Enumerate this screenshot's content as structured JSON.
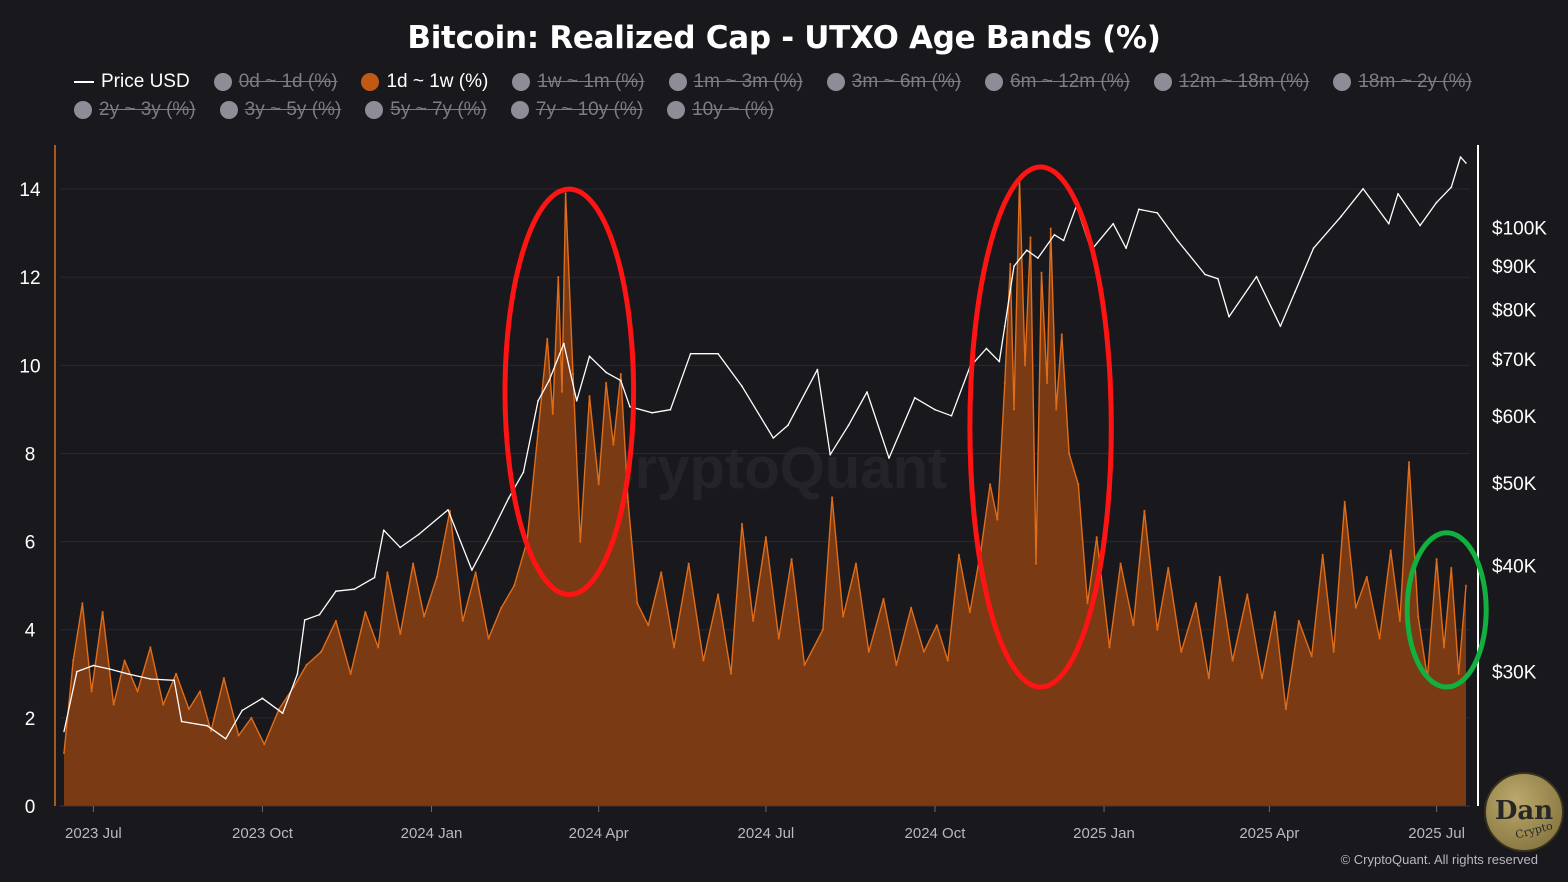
{
  "header": {
    "title": "Bitcoin: Realized Cap - UTXO Age Bands (%)"
  },
  "legend": [
    {
      "label": "Price USD",
      "kind": "line",
      "color": "#ffffff",
      "state": "active"
    },
    {
      "label": "0d ~ 1d (%)",
      "kind": "dot",
      "color": "#8e8c96",
      "state": "hidden"
    },
    {
      "label": "1d ~ 1w (%)",
      "kind": "dot",
      "color": "#c05a12",
      "state": "active"
    },
    {
      "label": "1w ~ 1m (%)",
      "kind": "dot",
      "color": "#8e8c96",
      "state": "hidden"
    },
    {
      "label": "1m ~ 3m (%)",
      "kind": "dot",
      "color": "#8e8c96",
      "state": "hidden"
    },
    {
      "label": "3m ~ 6m (%)",
      "kind": "dot",
      "color": "#8e8c96",
      "state": "hidden"
    },
    {
      "label": "6m ~ 12m (%)",
      "kind": "dot",
      "color": "#8e8c96",
      "state": "hidden"
    },
    {
      "label": "12m ~ 18m (%)",
      "kind": "dot",
      "color": "#8e8c96",
      "state": "hidden"
    },
    {
      "label": "18m ~ 2y (%)",
      "kind": "dot",
      "color": "#8e8c96",
      "state": "hidden"
    },
    {
      "label": "2y ~ 3y (%)",
      "kind": "dot",
      "color": "#8e8c96",
      "state": "hidden"
    },
    {
      "label": "3y ~ 5y (%)",
      "kind": "dot",
      "color": "#8e8c96",
      "state": "hidden"
    },
    {
      "label": "5y ~ 7y (%)",
      "kind": "dot",
      "color": "#8e8c96",
      "state": "hidden"
    },
    {
      "label": "7y ~ 10y (%)",
      "kind": "dot",
      "color": "#8e8c96",
      "state": "hidden"
    },
    {
      "label": "10y ~ (%)",
      "kind": "dot",
      "color": "#8e8c96",
      "state": "hidden"
    }
  ],
  "watermark": "CryptoQuant",
  "footer": {
    "credit": "© CryptoQuant. All rights reserved"
  },
  "logo": {
    "main": "Dan",
    "sub": "Crypto"
  },
  "colors": {
    "background": "#19181d",
    "area_fill": "#7f3c13",
    "area_line": "#e06d1a",
    "price_line": "#ffffff",
    "grid": "#2a2930",
    "left_axis": "#a55a1c",
    "red_highlight": "#ff1414",
    "green_highlight": "#11b03f"
  },
  "chart_data": {
    "type": "area+line",
    "title": "Bitcoin: Realized Cap - UTXO Age Bands (%)",
    "x_ticks": [
      "2023 Jul",
      "2023 Oct",
      "2024 Jan",
      "2024 Apr",
      "2024 Jul",
      "2024 Oct",
      "2025 Jan",
      "2025 Apr",
      "2025 Jul"
    ],
    "x_range": [
      "2023-06-15",
      "2025-07-17"
    ],
    "left_axis": {
      "ticks": [
        0,
        2,
        4,
        6,
        8,
        10,
        12,
        14
      ],
      "range": [
        0,
        15
      ]
    },
    "right_axis": {
      "scale": "log",
      "ticks": [
        "$30K",
        "$40K",
        "$50K",
        "$60K",
        "$70K",
        "$80K",
        "$90K",
        "$100K"
      ],
      "tick_values": [
        30000,
        40000,
        50000,
        60000,
        70000,
        80000,
        90000,
        100000
      ],
      "range": [
        22000,
        125000
      ]
    },
    "series": [
      {
        "name": "1d ~ 1w (%)",
        "axis": "left",
        "points": [
          [
            "2023-06-15",
            1.2
          ],
          [
            "2023-06-20",
            3.3
          ],
          [
            "2023-06-25",
            4.6
          ],
          [
            "2023-06-30",
            2.6
          ],
          [
            "2023-07-06",
            4.4
          ],
          [
            "2023-07-12",
            2.3
          ],
          [
            "2023-07-18",
            3.3
          ],
          [
            "2023-07-25",
            2.6
          ],
          [
            "2023-08-01",
            3.6
          ],
          [
            "2023-08-08",
            2.3
          ],
          [
            "2023-08-15",
            3.0
          ],
          [
            "2023-08-22",
            2.2
          ],
          [
            "2023-08-28",
            2.6
          ],
          [
            "2023-09-03",
            1.7
          ],
          [
            "2023-09-10",
            2.9
          ],
          [
            "2023-09-18",
            1.6
          ],
          [
            "2023-09-25",
            2.0
          ],
          [
            "2023-10-02",
            1.4
          ],
          [
            "2023-10-10",
            2.2
          ],
          [
            "2023-10-18",
            2.7
          ],
          [
            "2023-10-25",
            3.2
          ],
          [
            "2023-11-02",
            3.5
          ],
          [
            "2023-11-10",
            4.2
          ],
          [
            "2023-11-18",
            3.0
          ],
          [
            "2023-11-26",
            4.4
          ],
          [
            "2023-12-03",
            3.6
          ],
          [
            "2023-12-08",
            5.3
          ],
          [
            "2023-12-15",
            3.9
          ],
          [
            "2023-12-22",
            5.5
          ],
          [
            "2023-12-28",
            4.3
          ],
          [
            "2024-01-04",
            5.2
          ],
          [
            "2024-01-11",
            6.7
          ],
          [
            "2024-01-18",
            4.2
          ],
          [
            "2024-01-25",
            5.3
          ],
          [
            "2024-02-01",
            3.8
          ],
          [
            "2024-02-08",
            4.5
          ],
          [
            "2024-02-15",
            5.0
          ],
          [
            "2024-02-22",
            6.0
          ],
          [
            "2024-02-28",
            8.5
          ],
          [
            "2024-03-04",
            10.6
          ],
          [
            "2024-03-07",
            8.9
          ],
          [
            "2024-03-10",
            12.0
          ],
          [
            "2024-03-12",
            9.4
          ],
          [
            "2024-03-14",
            13.9
          ],
          [
            "2024-03-18",
            9.8
          ],
          [
            "2024-03-22",
            6.0
          ],
          [
            "2024-03-27",
            9.3
          ],
          [
            "2024-04-01",
            7.3
          ],
          [
            "2024-04-05",
            9.6
          ],
          [
            "2024-04-09",
            8.2
          ],
          [
            "2024-04-13",
            9.8
          ],
          [
            "2024-04-17",
            6.9
          ],
          [
            "2024-04-22",
            4.6
          ],
          [
            "2024-04-28",
            4.1
          ],
          [
            "2024-05-05",
            5.3
          ],
          [
            "2024-05-12",
            3.6
          ],
          [
            "2024-05-20",
            5.5
          ],
          [
            "2024-05-28",
            3.3
          ],
          [
            "2024-06-05",
            4.8
          ],
          [
            "2024-06-12",
            3.0
          ],
          [
            "2024-06-18",
            6.4
          ],
          [
            "2024-06-24",
            4.2
          ],
          [
            "2024-07-01",
            6.1
          ],
          [
            "2024-07-08",
            3.8
          ],
          [
            "2024-07-15",
            5.6
          ],
          [
            "2024-07-22",
            3.2
          ],
          [
            "2024-08-01",
            4.0
          ],
          [
            "2024-08-06",
            7.0
          ],
          [
            "2024-08-12",
            4.3
          ],
          [
            "2024-08-19",
            5.5
          ],
          [
            "2024-08-26",
            3.5
          ],
          [
            "2024-09-03",
            4.7
          ],
          [
            "2024-09-10",
            3.2
          ],
          [
            "2024-09-18",
            4.5
          ],
          [
            "2024-09-25",
            3.5
          ],
          [
            "2024-10-02",
            4.1
          ],
          [
            "2024-10-08",
            3.3
          ],
          [
            "2024-10-14",
            5.7
          ],
          [
            "2024-10-20",
            4.4
          ],
          [
            "2024-10-26",
            5.8
          ],
          [
            "2024-10-31",
            7.3
          ],
          [
            "2024-11-04",
            6.5
          ],
          [
            "2024-11-08",
            9.6
          ],
          [
            "2024-11-11",
            12.3
          ],
          [
            "2024-11-13",
            9.0
          ],
          [
            "2024-11-16",
            14.2
          ],
          [
            "2024-11-19",
            10.0
          ],
          [
            "2024-11-22",
            12.9
          ],
          [
            "2024-11-25",
            5.5
          ],
          [
            "2024-11-28",
            12.1
          ],
          [
            "2024-12-01",
            9.6
          ],
          [
            "2024-12-03",
            13.1
          ],
          [
            "2024-12-06",
            9.0
          ],
          [
            "2024-12-09",
            10.7
          ],
          [
            "2024-12-13",
            8.0
          ],
          [
            "2024-12-18",
            7.3
          ],
          [
            "2024-12-23",
            4.6
          ],
          [
            "2024-12-28",
            6.1
          ],
          [
            "2025-01-04",
            3.6
          ],
          [
            "2025-01-10",
            5.5
          ],
          [
            "2025-01-17",
            4.1
          ],
          [
            "2025-01-23",
            6.7
          ],
          [
            "2025-01-30",
            4.0
          ],
          [
            "2025-02-05",
            5.4
          ],
          [
            "2025-02-12",
            3.5
          ],
          [
            "2025-02-20",
            4.6
          ],
          [
            "2025-02-27",
            2.9
          ],
          [
            "2025-03-05",
            5.2
          ],
          [
            "2025-03-12",
            3.3
          ],
          [
            "2025-03-20",
            4.8
          ],
          [
            "2025-03-28",
            2.9
          ],
          [
            "2025-04-04",
            4.4
          ],
          [
            "2025-04-10",
            2.2
          ],
          [
            "2025-04-17",
            4.2
          ],
          [
            "2025-04-24",
            3.4
          ],
          [
            "2025-04-30",
            5.7
          ],
          [
            "2025-05-06",
            3.5
          ],
          [
            "2025-05-12",
            6.9
          ],
          [
            "2025-05-18",
            4.5
          ],
          [
            "2025-05-24",
            5.2
          ],
          [
            "2025-05-31",
            3.8
          ],
          [
            "2025-06-06",
            5.8
          ],
          [
            "2025-06-11",
            4.2
          ],
          [
            "2025-06-16",
            7.8
          ],
          [
            "2025-06-21",
            4.3
          ],
          [
            "2025-06-26",
            2.9
          ],
          [
            "2025-07-01",
            5.6
          ],
          [
            "2025-07-05",
            3.6
          ],
          [
            "2025-07-09",
            5.4
          ],
          [
            "2025-07-13",
            3.0
          ],
          [
            "2025-07-17",
            5.0
          ]
        ]
      },
      {
        "name": "Price USD",
        "axis": "right",
        "points": [
          [
            "2023-06-15",
            25500
          ],
          [
            "2023-06-22",
            30000
          ],
          [
            "2023-07-01",
            30500
          ],
          [
            "2023-07-10",
            30200
          ],
          [
            "2023-07-20",
            29800
          ],
          [
            "2023-08-01",
            29400
          ],
          [
            "2023-08-14",
            29300
          ],
          [
            "2023-08-18",
            26200
          ],
          [
            "2023-09-01",
            25900
          ],
          [
            "2023-09-11",
            25000
          ],
          [
            "2023-09-20",
            27000
          ],
          [
            "2023-10-01",
            27900
          ],
          [
            "2023-10-12",
            26800
          ],
          [
            "2023-10-20",
            29800
          ],
          [
            "2023-10-24",
            34500
          ],
          [
            "2023-11-01",
            35000
          ],
          [
            "2023-11-10",
            37300
          ],
          [
            "2023-11-20",
            37500
          ],
          [
            "2023-12-01",
            38700
          ],
          [
            "2023-12-06",
            44000
          ],
          [
            "2023-12-15",
            42000
          ],
          [
            "2023-12-25",
            43500
          ],
          [
            "2024-01-10",
            46500
          ],
          [
            "2024-01-23",
            39500
          ],
          [
            "2024-02-01",
            43000
          ],
          [
            "2024-02-12",
            48000
          ],
          [
            "2024-02-20",
            51500
          ],
          [
            "2024-02-28",
            62500
          ],
          [
            "2024-03-05",
            66000
          ],
          [
            "2024-03-13",
            73000
          ],
          [
            "2024-03-20",
            62500
          ],
          [
            "2024-03-27",
            70500
          ],
          [
            "2024-04-05",
            67500
          ],
          [
            "2024-04-13",
            66000
          ],
          [
            "2024-04-18",
            61500
          ],
          [
            "2024-04-30",
            60500
          ],
          [
            "2024-05-10",
            61000
          ],
          [
            "2024-05-21",
            71000
          ],
          [
            "2024-06-05",
            71000
          ],
          [
            "2024-06-18",
            65000
          ],
          [
            "2024-07-05",
            56500
          ],
          [
            "2024-07-13",
            58500
          ],
          [
            "2024-07-29",
            68000
          ],
          [
            "2024-08-05",
            54000
          ],
          [
            "2024-08-15",
            58500
          ],
          [
            "2024-08-25",
            64000
          ],
          [
            "2024-09-06",
            53500
          ],
          [
            "2024-09-20",
            63000
          ],
          [
            "2024-10-01",
            61000
          ],
          [
            "2024-10-10",
            60000
          ],
          [
            "2024-10-20",
            68500
          ],
          [
            "2024-10-29",
            72000
          ],
          [
            "2024-11-05",
            69500
          ],
          [
            "2024-11-08",
            76500
          ],
          [
            "2024-11-13",
            90000
          ],
          [
            "2024-11-20",
            94000
          ],
          [
            "2024-11-26",
            92000
          ],
          [
            "2024-12-05",
            98000
          ],
          [
            "2024-12-10",
            96500
          ],
          [
            "2024-12-17",
            106000
          ],
          [
            "2024-12-25",
            94000
          ],
          [
            "2025-01-06",
            101000
          ],
          [
            "2025-01-13",
            94500
          ],
          [
            "2025-01-20",
            105000
          ],
          [
            "2025-01-30",
            104000
          ],
          [
            "2025-02-10",
            96500
          ],
          [
            "2025-02-25",
            88000
          ],
          [
            "2025-03-04",
            87000
          ],
          [
            "2025-03-10",
            78500
          ],
          [
            "2025-03-25",
            87500
          ],
          [
            "2025-04-07",
            76500
          ],
          [
            "2025-04-15",
            84000
          ],
          [
            "2025-04-25",
            94500
          ],
          [
            "2025-05-10",
            103000
          ],
          [
            "2025-05-22",
            111000
          ],
          [
            "2025-06-05",
            101000
          ],
          [
            "2025-06-10",
            109500
          ],
          [
            "2025-06-22",
            100500
          ],
          [
            "2025-07-01",
            107000
          ],
          [
            "2025-07-09",
            111500
          ],
          [
            "2025-07-14",
            121000
          ],
          [
            "2025-07-17",
            119000
          ]
        ]
      }
    ],
    "annotations": [
      {
        "shape": "ellipse",
        "color": "red",
        "around_dates": [
          "2024-02-10",
          "2024-04-20"
        ],
        "around_values": [
          4.8,
          14.0
        ]
      },
      {
        "shape": "ellipse",
        "color": "red",
        "around_dates": [
          "2024-10-20",
          "2025-01-05"
        ],
        "around_values": [
          2.7,
          14.5
        ]
      },
      {
        "shape": "ellipse",
        "color": "green",
        "around_dates": [
          "2025-06-15",
          "2025-07-28"
        ],
        "around_values": [
          2.7,
          6.2
        ]
      }
    ]
  }
}
